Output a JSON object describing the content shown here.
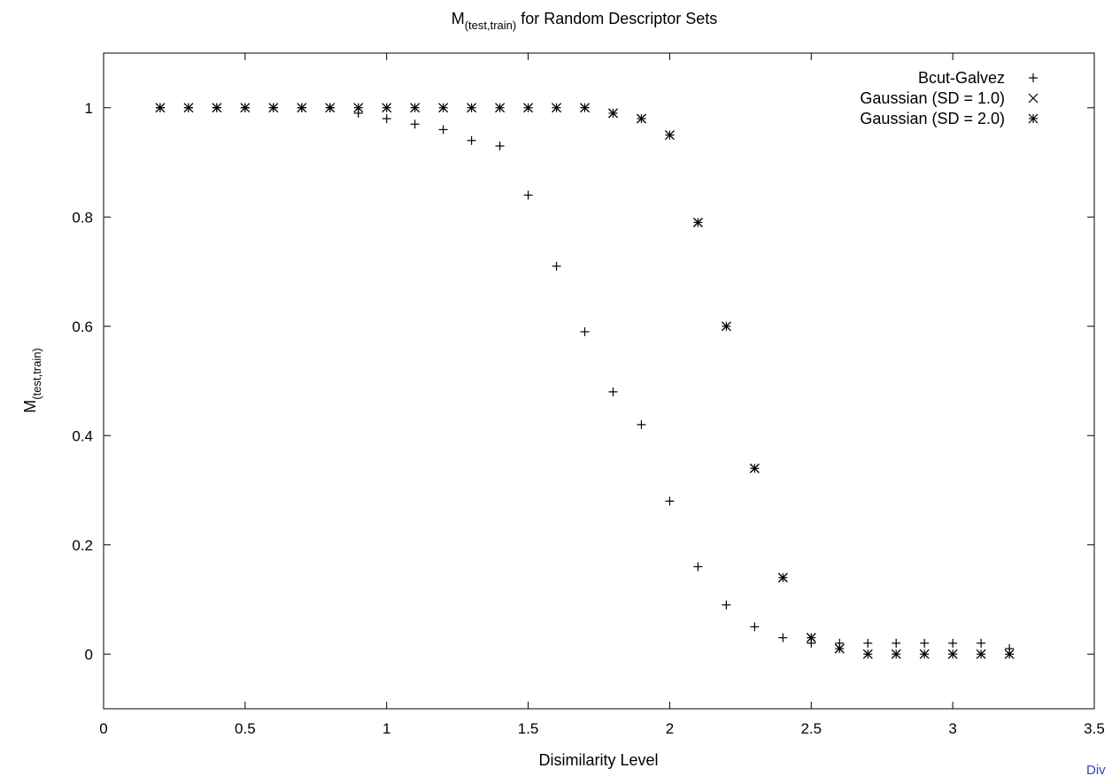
{
  "chart_data": {
    "type": "scatter",
    "title": {
      "main": "M",
      "sub": "(test,train)",
      "rest": " for Random Descriptor Sets"
    },
    "xlabel": "Disimilarity Level",
    "ylabel": {
      "main": "M",
      "sub": "(test,train)"
    },
    "xlim": [
      0,
      3.5
    ],
    "ylim": [
      -0.1,
      1.1
    ],
    "x_ticks": [
      0,
      0.5,
      1,
      1.5,
      2,
      2.5,
      3,
      3.5
    ],
    "x_tick_labels": [
      "0",
      "0.5",
      "1",
      "1.5",
      "2",
      "2.5",
      "3",
      "3.5"
    ],
    "y_ticks": [
      0,
      0.2,
      0.4,
      0.6,
      0.8,
      1
    ],
    "y_tick_labels": [
      "0",
      "0.2",
      "0.4",
      "0.6",
      "0.8",
      "1"
    ],
    "grid": false,
    "legend_position": "top-right",
    "series": [
      {
        "name": "Bcut-Galvez",
        "marker": "plus",
        "x": [
          0.2,
          0.3,
          0.4,
          0.5,
          0.6,
          0.7,
          0.8,
          0.9,
          1.0,
          1.1,
          1.2,
          1.3,
          1.4,
          1.5,
          1.6,
          1.7,
          1.8,
          1.9,
          2.0,
          2.1,
          2.2,
          2.3,
          2.4,
          2.5,
          2.6,
          2.7,
          2.8,
          2.9,
          3.0,
          3.1,
          3.2
        ],
        "y": [
          1,
          1,
          1,
          1,
          1,
          1,
          1,
          0.99,
          0.98,
          0.97,
          0.96,
          0.94,
          0.93,
          0.84,
          0.71,
          0.59,
          0.48,
          0.42,
          0.28,
          0.16,
          0.09,
          0.05,
          0.03,
          0.02,
          0.02,
          0.02,
          0.02,
          0.02,
          0.02,
          0.02,
          0.01
        ]
      },
      {
        "name": "Gaussian (SD = 1.0)",
        "marker": "cross",
        "x": [
          0.2,
          0.3,
          0.4,
          0.5,
          0.6,
          0.7,
          0.8,
          0.9,
          1.0,
          1.1,
          1.2,
          1.3,
          1.4,
          1.5,
          1.6,
          1.7,
          1.8,
          1.9,
          2.0,
          2.1,
          2.2,
          2.3,
          2.4,
          2.5,
          2.6,
          2.7,
          2.8,
          2.9,
          3.0,
          3.1,
          3.2
        ],
        "y": [
          1,
          1,
          1,
          1,
          1,
          1,
          1,
          1,
          1,
          1,
          1,
          1,
          1,
          1,
          1,
          1,
          0.99,
          0.98,
          0.95,
          0.79,
          0.6,
          0.34,
          0.14,
          0.03,
          0.01,
          0,
          0,
          0,
          0,
          0,
          0
        ]
      },
      {
        "name": "Gaussian (SD = 2.0)",
        "marker": "star",
        "x": [
          0.2,
          0.3,
          0.4,
          0.5,
          0.6,
          0.7,
          0.8,
          0.9,
          1.0,
          1.1,
          1.2,
          1.3,
          1.4,
          1.5,
          1.6,
          1.7,
          1.8,
          1.9,
          2.0,
          2.1,
          2.2,
          2.3,
          2.4,
          2.5,
          2.6,
          2.7,
          2.8,
          2.9,
          3.0,
          3.1,
          3.2
        ],
        "y": [
          1,
          1,
          1,
          1,
          1,
          1,
          1,
          1,
          1,
          1,
          1,
          1,
          1,
          1,
          1,
          1,
          0.99,
          0.98,
          0.95,
          0.79,
          0.6,
          0.34,
          0.14,
          0.03,
          0.01,
          0,
          0,
          0,
          0,
          0,
          0
        ]
      }
    ]
  },
  "footer": {
    "partial_text": "Div"
  },
  "colors": {
    "marker": "#000000",
    "axis": "#000000",
    "link": "#3b3bbf"
  }
}
